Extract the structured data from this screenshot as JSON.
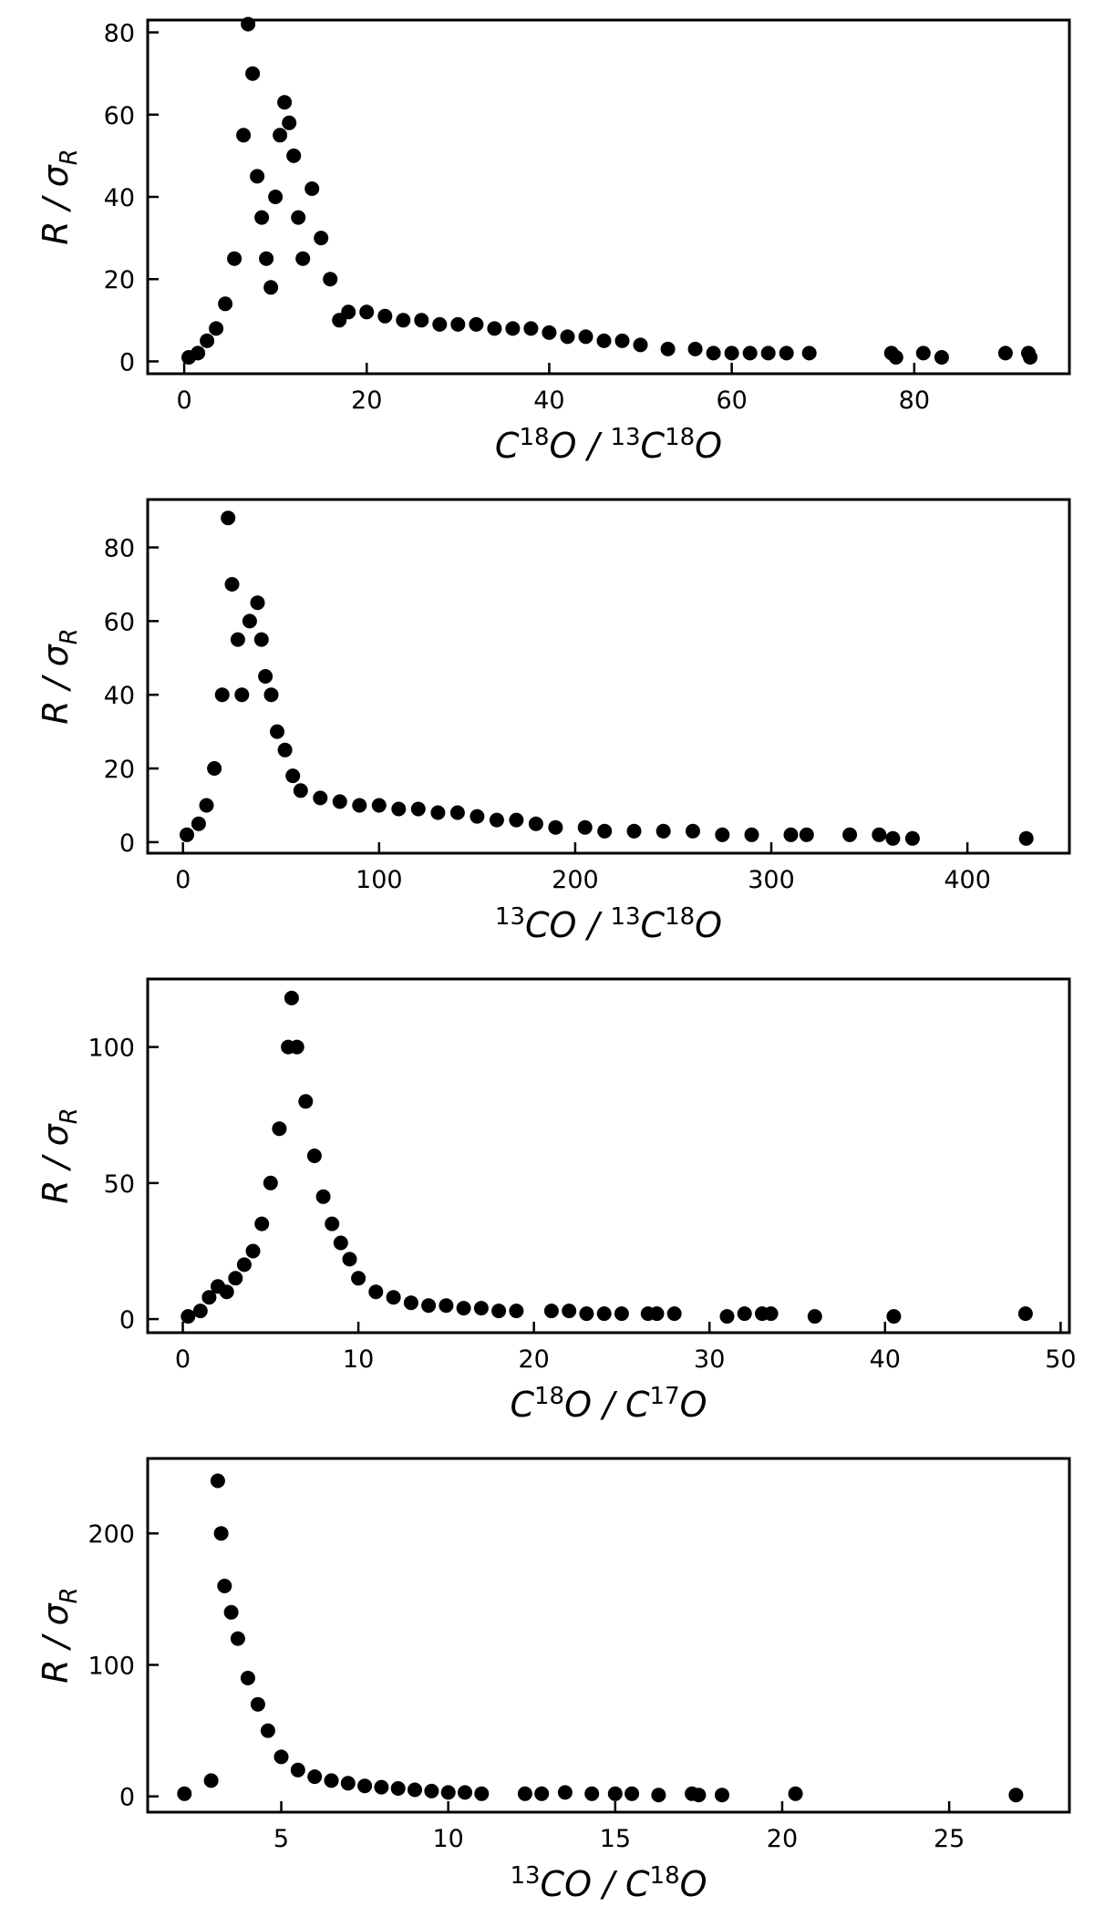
{
  "chart_data": [
    {
      "type": "scatter",
      "xlabel": "C18O/13C18O",
      "xlabel_parts": {
        "a_sup": "",
        "a_base": "C",
        "a_sup2": "18",
        "a_end": "O",
        "b_sup": "13",
        "b_base": "C",
        "b_sup2": "18",
        "b_end": "O"
      },
      "ylabel": "R/σR",
      "ylabel_parts": {
        "main": "R",
        "sep": "/",
        "sigma": "σ",
        "sub": "R"
      },
      "xlim": [
        -4,
        97
      ],
      "ylim": [
        -3,
        83
      ],
      "xticks": [
        0,
        20,
        40,
        60,
        80
      ],
      "yticks": [
        0,
        20,
        40,
        60,
        80
      ],
      "tick_labels_x": [
        "0",
        "20",
        "40",
        "60",
        "80"
      ],
      "tick_labels_y": [
        "0",
        "20",
        "40",
        "60",
        "80"
      ],
      "x": [
        0.5,
        1.5,
        2.5,
        3.5,
        4.5,
        5.5,
        6.5,
        7,
        7.5,
        8,
        8.5,
        9,
        9.5,
        10,
        10.5,
        11,
        11.5,
        12,
        12.5,
        13,
        14,
        15,
        16,
        17,
        18,
        20,
        22,
        24,
        26,
        28,
        30,
        32,
        34,
        36,
        38,
        40,
        42,
        44,
        46,
        48,
        50,
        53,
        56,
        58,
        60,
        62,
        64,
        66,
        68.5,
        77.5,
        78,
        81,
        83,
        90,
        92.5,
        92.7
      ],
      "y": [
        1,
        2,
        5,
        8,
        14,
        25,
        55,
        82,
        70,
        45,
        35,
        25,
        18,
        40,
        55,
        63,
        58,
        50,
        35,
        25,
        42,
        30,
        20,
        10,
        12,
        12,
        11,
        10,
        10,
        9,
        9,
        9,
        8,
        8,
        8,
        7,
        6,
        6,
        5,
        5,
        4,
        3,
        3,
        2,
        2,
        2,
        2,
        2,
        2,
        2,
        1,
        2,
        1,
        2,
        2,
        1
      ]
    },
    {
      "type": "scatter",
      "xlabel": "13CO/13C18O",
      "xlabel_parts": {
        "a_sup": "13",
        "a_base": "C",
        "a_sup2": "",
        "a_end": "O",
        "b_sup": "13",
        "b_base": "C",
        "b_sup2": "18",
        "b_end": "O"
      },
      "ylabel": "R/σR",
      "ylabel_parts": {
        "main": "R",
        "sep": "/",
        "sigma": "σ",
        "sub": "R"
      },
      "xlim": [
        -18,
        452
      ],
      "ylim": [
        -3,
        93
      ],
      "xticks": [
        0,
        100,
        200,
        300,
        400
      ],
      "yticks": [
        0,
        20,
        40,
        60,
        80
      ],
      "tick_labels_x": [
        "0",
        "100",
        "200",
        "300",
        "400"
      ],
      "tick_labels_y": [
        "0",
        "20",
        "40",
        "60",
        "80"
      ],
      "x": [
        2,
        8,
        12,
        16,
        20,
        23,
        25,
        28,
        30,
        34,
        38,
        40,
        42,
        45,
        48,
        52,
        56,
        60,
        70,
        80,
        90,
        100,
        110,
        120,
        130,
        140,
        150,
        160,
        170,
        180,
        190,
        205,
        215,
        230,
        245,
        260,
        275,
        290,
        310,
        318,
        340,
        355,
        362,
        372,
        430
      ],
      "y": [
        2,
        5,
        10,
        20,
        40,
        88,
        70,
        55,
        40,
        60,
        65,
        55,
        45,
        40,
        30,
        25,
        18,
        14,
        12,
        11,
        10,
        10,
        9,
        9,
        8,
        8,
        7,
        6,
        6,
        5,
        4,
        4,
        3,
        3,
        3,
        3,
        2,
        2,
        2,
        2,
        2,
        2,
        1,
        1,
        1
      ]
    },
    {
      "type": "scatter",
      "xlabel": "C18O/C17O",
      "xlabel_parts": {
        "a_sup": "",
        "a_base": "C",
        "a_sup2": "18",
        "a_end": "O",
        "b_sup": "",
        "b_base": "C",
        "b_sup2": "17",
        "b_end": "O"
      },
      "ylabel": "R/σR",
      "ylabel_parts": {
        "main": "R",
        "sep": "/",
        "sigma": "σ",
        "sub": "R"
      },
      "xlim": [
        -2,
        50.5
      ],
      "ylim": [
        -5,
        125
      ],
      "xticks": [
        0,
        10,
        20,
        30,
        40,
        50
      ],
      "yticks": [
        0,
        50,
        100
      ],
      "tick_labels_x": [
        "0",
        "10",
        "20",
        "30",
        "40",
        "50"
      ],
      "tick_labels_y": [
        "0",
        "50",
        "100"
      ],
      "x": [
        0.3,
        1,
        1.5,
        2,
        2.5,
        3,
        3.5,
        4,
        4.5,
        5,
        5.5,
        6,
        6.2,
        6.5,
        7,
        7.5,
        8,
        8.5,
        9,
        9.5,
        10,
        11,
        12,
        13,
        14,
        15,
        16,
        17,
        18,
        19,
        21,
        22,
        23,
        24,
        25,
        26.5,
        27,
        28,
        31,
        32,
        33,
        33.5,
        36,
        40.5,
        48
      ],
      "y": [
        1,
        3,
        8,
        12,
        10,
        15,
        20,
        25,
        35,
        50,
        70,
        100,
        118,
        100,
        80,
        60,
        45,
        35,
        28,
        22,
        15,
        10,
        8,
        6,
        5,
        5,
        4,
        4,
        3,
        3,
        3,
        3,
        2,
        2,
        2,
        2,
        2,
        2,
        1,
        2,
        2,
        2,
        1,
        1,
        2
      ]
    },
    {
      "type": "scatter",
      "xlabel": "13CO/C18O",
      "xlabel_parts": {
        "a_sup": "13",
        "a_base": "C",
        "a_sup2": "",
        "a_end": "O",
        "b_sup": "",
        "b_base": "C",
        "b_sup2": "18",
        "b_end": "O"
      },
      "ylabel": "R/σR",
      "ylabel_parts": {
        "main": "R",
        "sep": "/",
        "sigma": "σ",
        "sub": "R"
      },
      "xlim": [
        1,
        28.6
      ],
      "ylim": [
        -12,
        257
      ],
      "xticks": [
        5,
        10,
        15,
        20,
        25
      ],
      "yticks": [
        0,
        100,
        200
      ],
      "tick_labels_x": [
        "5",
        "10",
        "15",
        "20",
        "25"
      ],
      "tick_labels_y": [
        "0",
        "100",
        "200"
      ],
      "x": [
        2.1,
        2.9,
        3.1,
        3.2,
        3.3,
        3.5,
        3.7,
        4,
        4.3,
        4.6,
        5,
        5.5,
        6,
        6.5,
        7,
        7.5,
        8,
        8.5,
        9,
        9.5,
        10,
        10.5,
        11,
        12.3,
        12.8,
        13.5,
        14.3,
        15,
        15.5,
        16.3,
        17.3,
        17.5,
        18.2,
        20.4,
        27
      ],
      "y": [
        2,
        12,
        240,
        200,
        160,
        140,
        120,
        90,
        70,
        50,
        30,
        20,
        15,
        12,
        10,
        8,
        7,
        6,
        5,
        4,
        3,
        3,
        2,
        2,
        2,
        3,
        2,
        2,
        2,
        1,
        2,
        1,
        1,
        2,
        1
      ]
    }
  ]
}
